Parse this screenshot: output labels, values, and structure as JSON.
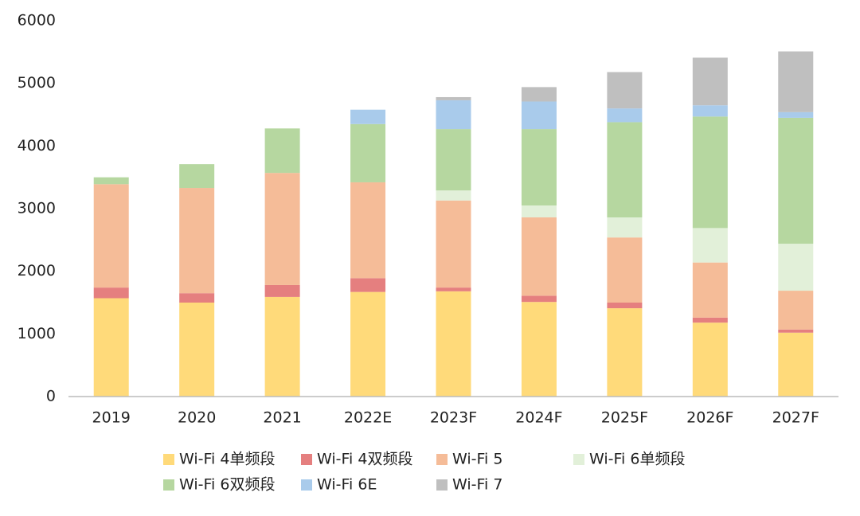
{
  "chart_data": {
    "type": "stacked_bar",
    "categories": [
      "2019",
      "2020",
      "2021",
      "2022E",
      "2023F",
      "2024F",
      "2025F",
      "2026F",
      "2027F"
    ],
    "series": [
      {
        "name": "Wi-Fi 4单频段",
        "color": "#FFDA7A",
        "values": [
          1570,
          1500,
          1590,
          1670,
          1680,
          1510,
          1410,
          1180,
          1020
        ]
      },
      {
        "name": "Wi-Fi 4双频段",
        "color": "#E57F7F",
        "values": [
          170,
          150,
          190,
          220,
          60,
          100,
          90,
          80,
          50
        ]
      },
      {
        "name": "Wi-Fi 5",
        "color": "#F5BC98",
        "values": [
          1650,
          1680,
          1790,
          1530,
          1390,
          1250,
          1040,
          880,
          620
        ]
      },
      {
        "name": "Wi-Fi 6单频段",
        "color": "#E2F0D9",
        "values": [
          0,
          0,
          0,
          0,
          160,
          190,
          320,
          550,
          750
        ]
      },
      {
        "name": "Wi-Fi 6双频段",
        "color": "#B6D7A0",
        "values": [
          110,
          380,
          710,
          930,
          980,
          1220,
          1520,
          1780,
          2010
        ]
      },
      {
        "name": "Wi-Fi 6E",
        "color": "#A9CBEB",
        "values": [
          0,
          0,
          0,
          230,
          460,
          440,
          220,
          180,
          90
        ]
      },
      {
        "name": "Wi-Fi 7",
        "color": "#BFBFBF",
        "values": [
          0,
          0,
          0,
          0,
          50,
          230,
          580,
          760,
          970
        ]
      }
    ],
    "ylim": [
      0,
      6000
    ],
    "yticks": [
      0,
      1000,
      2000,
      3000,
      4000,
      5000,
      6000
    ],
    "legend": "bottom"
  }
}
